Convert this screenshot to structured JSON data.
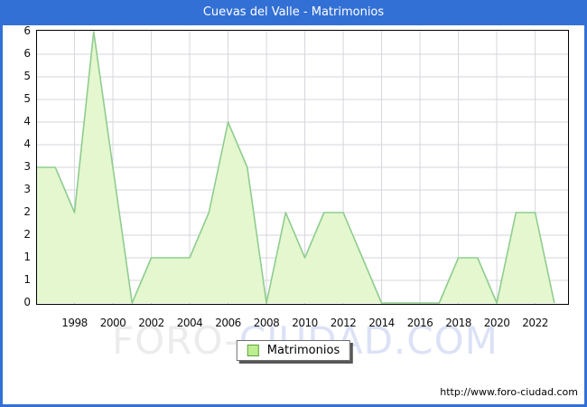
{
  "window": {
    "title": "Cuevas del Valle - Matrimonios",
    "frame_color": "#3370D5",
    "url_text": "http://www.foro-ciudad.com"
  },
  "watermark": {
    "part1": "FORO-",
    "part2": "CIUDAD.COM",
    "color1": "#ECECEC",
    "color2": "#DCE2F6"
  },
  "legend": {
    "label": "Matrimonios",
    "swatch_fill": "#BDEE92",
    "swatch_border": "#5FA33B"
  },
  "chart_data": {
    "type": "area",
    "title": "Cuevas del Valle - Matrimonios",
    "series_name": "Matrimonios",
    "x": [
      1996,
      1997,
      1998,
      1999,
      2000,
      2001,
      2002,
      2003,
      2004,
      2005,
      2006,
      2007,
      2008,
      2009,
      2010,
      2011,
      2012,
      2013,
      2014,
      2015,
      2016,
      2017,
      2018,
      2019,
      2020,
      2021,
      2022,
      2023
    ],
    "values": [
      3,
      3,
      2,
      6,
      3,
      0,
      1,
      1,
      1,
      2,
      4,
      3,
      0,
      2,
      1,
      2,
      2,
      1,
      0,
      0,
      0,
      0,
      1,
      1,
      0,
      2,
      2,
      0
    ],
    "xlabel": "",
    "ylabel": "",
    "ylim": [
      0,
      6
    ],
    "xlim": [
      1996,
      2023.76
    ],
    "y_tick_step": 0.5,
    "y_tick_labels": [
      "6",
      "6",
      "5",
      "5",
      "4",
      "4",
      "3",
      "3",
      "2",
      "2",
      "1",
      "1",
      "0"
    ],
    "x_tick_years": [
      1998,
      2000,
      2002,
      2004,
      2006,
      2008,
      2010,
      2012,
      2014,
      2016,
      2018,
      2020,
      2022
    ],
    "grid": true,
    "legend_position": "bottom-center",
    "fill_color": "#E4F7CE",
    "line_color": "#8FCD8F",
    "grid_color": "#D6D6DC",
    "border_color": "#000000"
  }
}
